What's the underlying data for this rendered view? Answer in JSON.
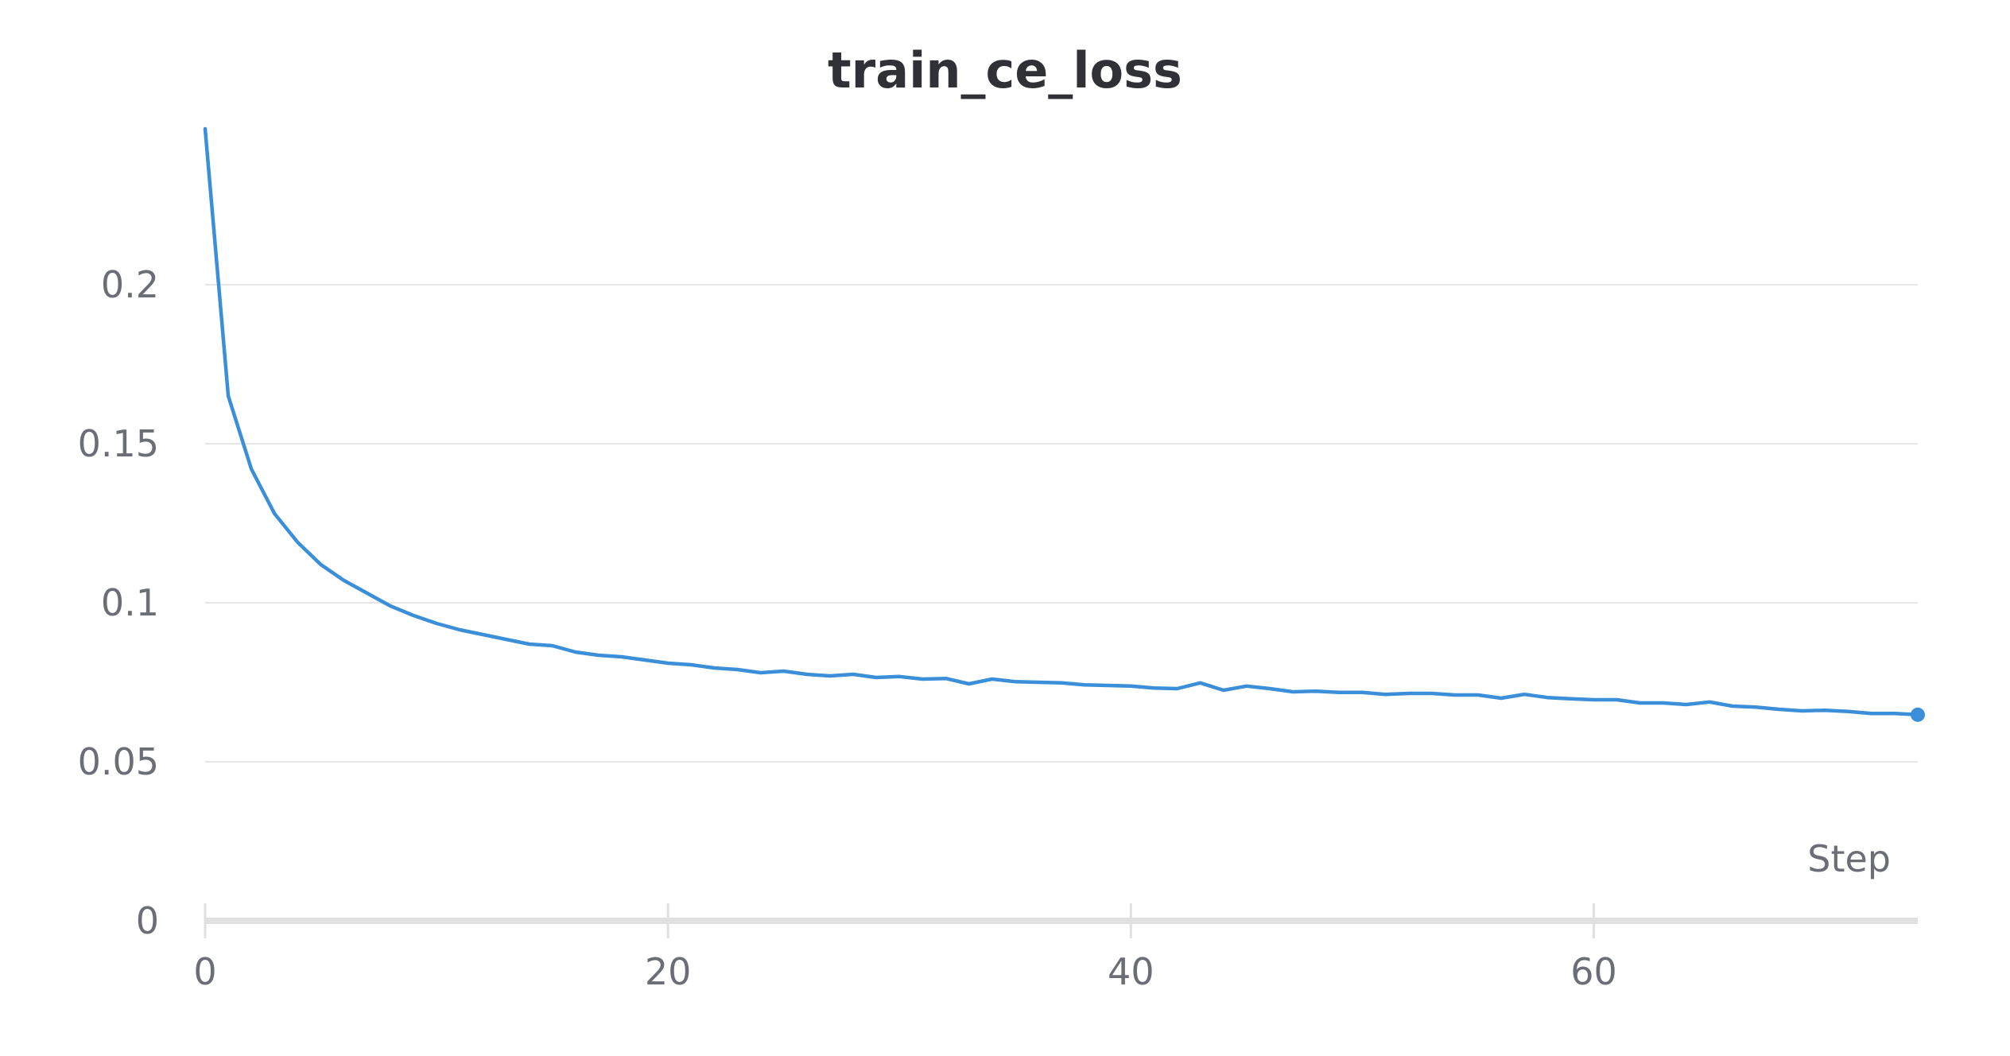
{
  "chart_data": {
    "type": "line",
    "title": "train_ce_loss",
    "xlabel": "Step",
    "ylabel": "",
    "xlim": [
      0,
      74
    ],
    "ylim": [
      0,
      0.25
    ],
    "xticks": [
      0,
      20,
      40,
      60
    ],
    "xtick_labels": [
      "0",
      "20",
      "40",
      "60"
    ],
    "yticks": [
      0,
      0.05,
      0.1,
      0.15,
      0.2
    ],
    "ytick_labels": [
      "0",
      "0.05",
      "0.1",
      "0.15",
      "0.2"
    ],
    "grid": true,
    "legend": "none",
    "series": [
      {
        "color": "#3b8ed8",
        "x": [
          0,
          1,
          2,
          3,
          4,
          5,
          6,
          7,
          8,
          9,
          10,
          11,
          12,
          13,
          14,
          15,
          16,
          17,
          18,
          19,
          20,
          21,
          22,
          23,
          24,
          25,
          26,
          27,
          28,
          29,
          30,
          31,
          32,
          33,
          34,
          35,
          36,
          37,
          38,
          39,
          40,
          41,
          42,
          43,
          44,
          45,
          46,
          47,
          48,
          49,
          50,
          51,
          52,
          53,
          54,
          55,
          56,
          57,
          58,
          59,
          60,
          61,
          62,
          63,
          64,
          65,
          66,
          67,
          68,
          69,
          70,
          71,
          72,
          73,
          74
        ],
        "y": [
          0.249,
          0.165,
          0.142,
          0.128,
          0.119,
          0.112,
          0.107,
          0.103,
          0.099,
          0.096,
          0.0935,
          0.0915,
          0.09,
          0.0885,
          0.087,
          0.0865,
          0.0845,
          0.0835,
          0.083,
          0.082,
          0.081,
          0.0805,
          0.0795,
          0.079,
          0.078,
          0.0785,
          0.0775,
          0.077,
          0.0775,
          0.0765,
          0.0768,
          0.076,
          0.0762,
          0.0745,
          0.076,
          0.0752,
          0.075,
          0.0748,
          0.0742,
          0.074,
          0.0738,
          0.0732,
          0.073,
          0.0748,
          0.0725,
          0.0738,
          0.073,
          0.072,
          0.0722,
          0.0718,
          0.0718,
          0.0712,
          0.0715,
          0.0715,
          0.071,
          0.071,
          0.07,
          0.0712,
          0.0702,
          0.0698,
          0.0695,
          0.0695,
          0.0685,
          0.0685,
          0.068,
          0.0688,
          0.0675,
          0.0672,
          0.0665,
          0.066,
          0.0662,
          0.0658,
          0.0652,
          0.0652,
          0.0648
        ]
      }
    ]
  }
}
